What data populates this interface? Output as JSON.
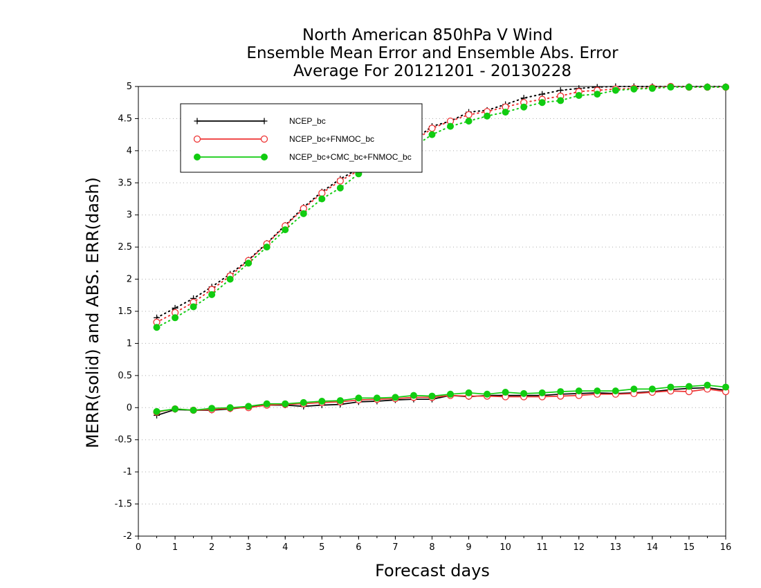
{
  "chart_data": {
    "type": "line",
    "title_lines": [
      "North American 850hPa V Wind",
      "Ensemble Mean Error and Ensemble Abs. Error",
      "Average For 20121201 - 20130228"
    ],
    "xlabel": "Forecast days",
    "ylabel": "MERR(solid) and ABS. ERR(dash)",
    "xlim": [
      0,
      16
    ],
    "ylim": [
      -2,
      5
    ],
    "x_ticks": [
      "0",
      "1",
      "2",
      "3",
      "4",
      "5",
      "6",
      "7",
      "8",
      "9",
      "10",
      "11",
      "12",
      "13",
      "14",
      "15",
      "16"
    ],
    "y_ticks": [
      "-2",
      "-1.5",
      "-1",
      "-0.5",
      "0",
      "0.5",
      "1",
      "1.5",
      "2",
      "2.5",
      "3",
      "3.5",
      "4",
      "4.5",
      "5"
    ],
    "grid": "horizontal dotted",
    "legend_position": "top-left",
    "x": [
      0.5,
      1,
      1.5,
      2,
      2.5,
      3,
      3.5,
      4,
      4.5,
      5,
      5.5,
      6,
      6.5,
      7,
      7.5,
      8,
      8.5,
      9,
      9.5,
      10,
      10.5,
      11,
      11.5,
      12,
      12.5,
      13,
      13.5,
      14,
      14.5,
      15,
      15.5,
      16
    ],
    "series": [
      {
        "name": "NCEP_bc",
        "color": "#000000",
        "marker": "plus",
        "abs_err": [
          1.4,
          1.55,
          1.7,
          1.88,
          2.08,
          2.3,
          2.56,
          2.84,
          3.12,
          3.36,
          3.56,
          3.72,
          3.88,
          4.02,
          4.16,
          4.38,
          4.46,
          4.6,
          4.63,
          4.72,
          4.82,
          4.88,
          4.94,
          4.97,
          4.99,
          5.0,
          5.0,
          5.0,
          5.0,
          5.0,
          5.0,
          5.0
        ],
        "mean_err": [
          -0.12,
          -0.03,
          -0.04,
          -0.04,
          -0.02,
          0.01,
          0.04,
          0.04,
          0.02,
          0.04,
          0.05,
          0.09,
          0.1,
          0.12,
          0.13,
          0.13,
          0.19,
          0.17,
          0.19,
          0.19,
          0.19,
          0.19,
          0.21,
          0.22,
          0.23,
          0.22,
          0.23,
          0.25,
          0.28,
          0.3,
          0.31,
          0.27
        ]
      },
      {
        "name": "NCEP_bc+FNMOC_bc",
        "color": "#ee3333",
        "marker": "circle",
        "abs_err": [
          1.33,
          1.48,
          1.64,
          1.84,
          2.05,
          2.29,
          2.55,
          2.83,
          3.1,
          3.34,
          3.53,
          3.69,
          3.85,
          3.99,
          4.14,
          4.35,
          4.46,
          4.56,
          4.61,
          4.68,
          4.75,
          4.8,
          4.85,
          4.92,
          4.94,
          4.96,
          4.97,
          4.98,
          5.0,
          4.99,
          4.99,
          4.99
        ],
        "mean_err": [
          -0.07,
          -0.02,
          -0.04,
          -0.03,
          -0.01,
          0.0,
          0.04,
          0.05,
          0.06,
          0.08,
          0.09,
          0.12,
          0.13,
          0.14,
          0.16,
          0.16,
          0.19,
          0.18,
          0.18,
          0.17,
          0.17,
          0.17,
          0.18,
          0.19,
          0.21,
          0.21,
          0.22,
          0.24,
          0.26,
          0.25,
          0.29,
          0.25
        ]
      },
      {
        "name": "NCEP_bc+CMC_bc+FNMOC_bc",
        "color": "#11cc11",
        "marker": "filled-circle",
        "abs_err": [
          1.25,
          1.4,
          1.57,
          1.76,
          2.0,
          2.25,
          2.5,
          2.77,
          3.02,
          3.25,
          3.42,
          3.64,
          3.8,
          3.94,
          4.06,
          4.25,
          4.38,
          4.46,
          4.54,
          4.6,
          4.68,
          4.75,
          4.78,
          4.86,
          4.88,
          4.94,
          4.96,
          4.97,
          4.99,
          4.99,
          4.99,
          4.99
        ],
        "mean_err": [
          -0.06,
          -0.02,
          -0.04,
          -0.01,
          0.0,
          0.02,
          0.06,
          0.06,
          0.08,
          0.1,
          0.11,
          0.15,
          0.15,
          0.16,
          0.19,
          0.18,
          0.21,
          0.23,
          0.21,
          0.24,
          0.22,
          0.23,
          0.25,
          0.26,
          0.26,
          0.26,
          0.29,
          0.29,
          0.32,
          0.33,
          0.35,
          0.32
        ]
      }
    ]
  }
}
